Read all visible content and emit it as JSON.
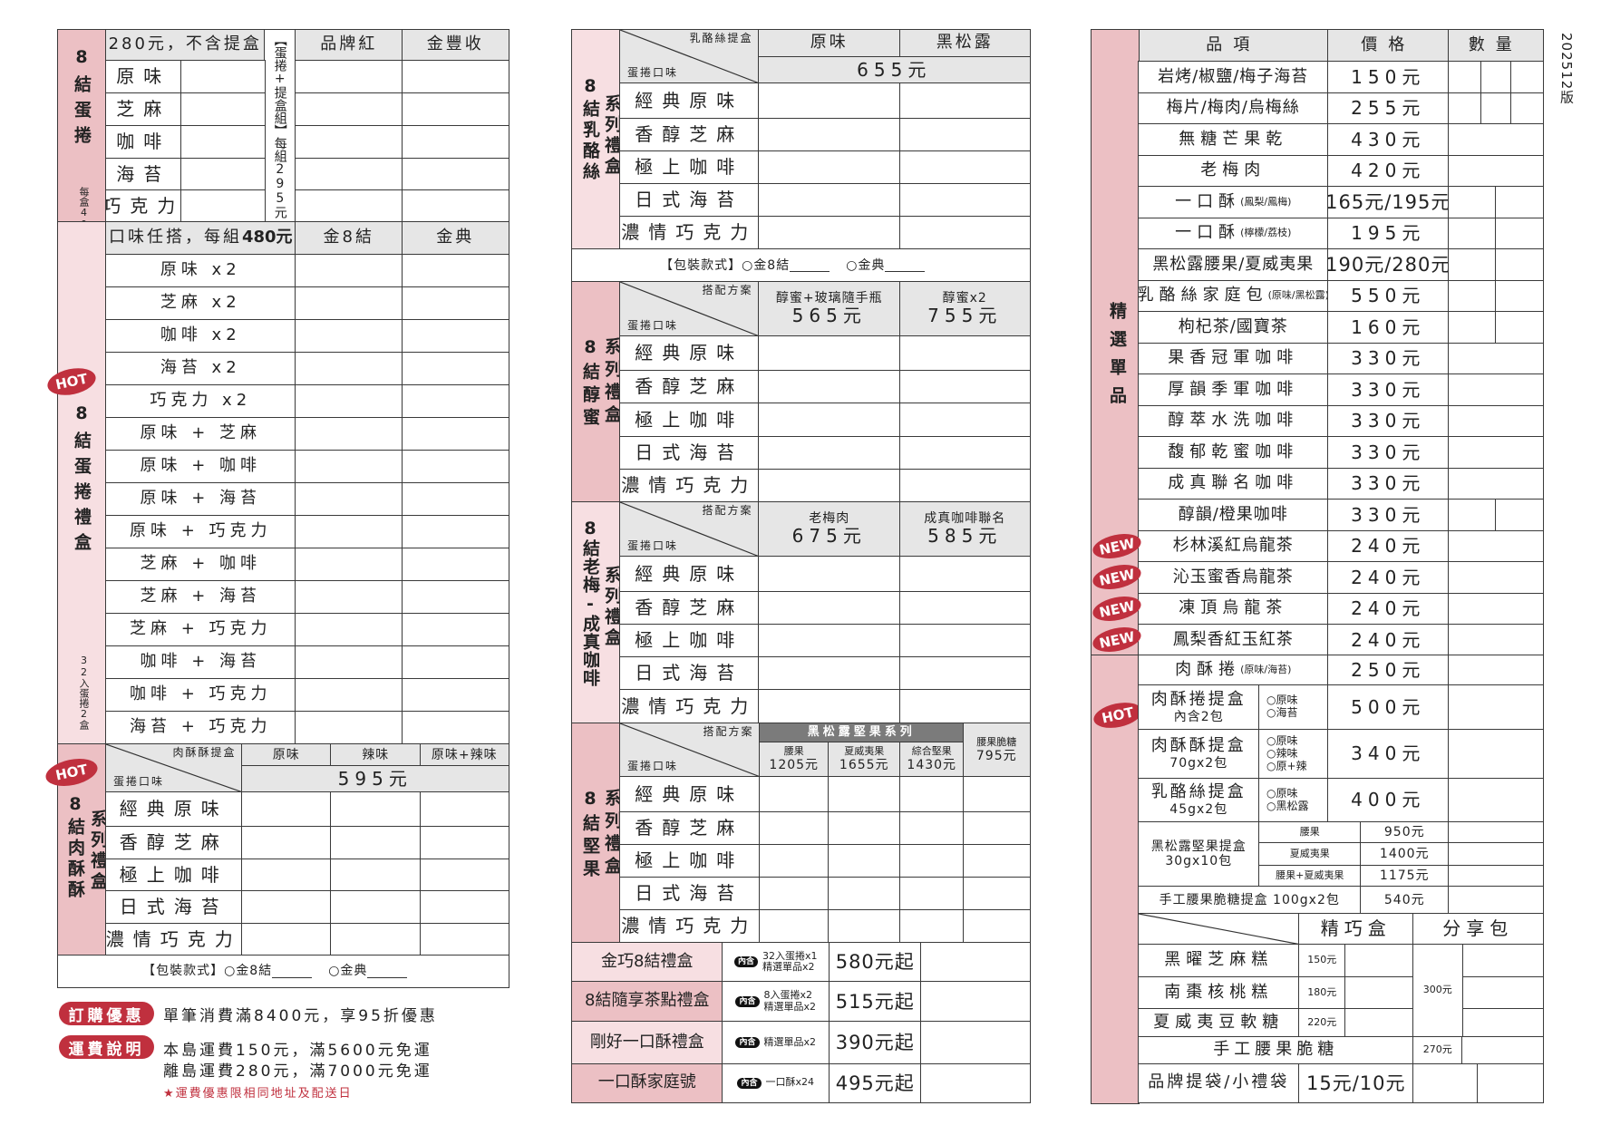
{
  "version": "202512版",
  "colors": {
    "pink": "#ecc0c4",
    "light_pink": "#f7dfe2",
    "header_gray": "#e6e6e6",
    "badge_red": "#c0303e"
  },
  "shared": {
    "flavors": [
      "經典原味",
      "香醇芝麻",
      "極上咖啡",
      "日式海苔",
      "濃情巧克力"
    ],
    "packaging": {
      "label": "【包裝款式】",
      "option1": "○金8結",
      "option2": "○金典"
    }
  },
  "left": {
    "eggroll": {
      "title": "8結蛋捲",
      "note": "每盒40入",
      "header": "280元，不含提盒",
      "flavors": [
        "原味",
        "芝麻",
        "咖啡",
        "海苔",
        "巧克力"
      ],
      "set_label": "【蛋捲+提盒組】",
      "set_price": "每組295元",
      "columns": [
        "品牌紅",
        "金豐收"
      ]
    },
    "giftbox": {
      "badge": "HOT",
      "title": "8結蛋捲禮盒",
      "note": "32入蛋捲2盒",
      "header_text": "口味任搭，每組",
      "header_price": "480元",
      "columns": [
        "金8結",
        "金典"
      ],
      "rows": [
        "原味 x2",
        "芝麻 x2",
        "咖啡 x2",
        "海苔 x2",
        "巧克力 x2",
        "原味 + 芝麻",
        "原味 + 咖啡",
        "原味 + 海苔",
        "原味 + 巧克力",
        "芝麻 + 咖啡",
        "芝麻 + 海苔",
        "芝麻 + 巧克力",
        "咖啡 + 海苔",
        "咖啡 + 巧克力",
        "海苔 + 巧克力"
      ]
    },
    "meat_box": {
      "badge": "HOT",
      "title": "8結肉酥酥",
      "subtitle": "系列禮盒",
      "corner_top": "肉酥酥提盒",
      "corner_bottom": "蛋捲口味",
      "columns": [
        "原味",
        "辣味",
        "原味+辣味"
      ],
      "price": "595元"
    },
    "promo": {
      "discount_badge": "訂購優惠",
      "discount_text": "單筆消費滿8400元，享95折優惠",
      "shipping_badge": "運費說明",
      "shipping_line1": "本島運費150元，滿5600元免運",
      "shipping_line2": "離島運費280元，滿7000元免運",
      "note": "★運費優惠限相同地址及配送日"
    }
  },
  "middle": {
    "cheese": {
      "title": "8結乳酪絲",
      "subtitle": "系列禮盒",
      "corner_top": "乳酪絲提盒",
      "corner_bottom": "蛋捲口味",
      "columns": [
        "原味",
        "黑松露"
      ],
      "price": "655元"
    },
    "honey": {
      "title": "8結醇蜜",
      "subtitle": "系列禮盒",
      "corner_top": "搭配方案",
      "corner_bottom": "蛋捲口味",
      "columns": [
        {
          "name": "醇蜜+玻璃隨手瓶",
          "price": "565元"
        },
        {
          "name": "醇蜜x2",
          "price": "755元"
        }
      ]
    },
    "plum": {
      "title": "8結老梅-成真咖啡",
      "subtitle": "系列禮盒",
      "corner_top": "搭配方案",
      "corner_bottom": "蛋捲口味",
      "columns": [
        {
          "name": "老梅肉",
          "price": "675元"
        },
        {
          "name": "成真咖啡聯名",
          "price": "585元"
        }
      ]
    },
    "nuts": {
      "title": "8結堅果",
      "subtitle": "系列禮盒",
      "corner_top": "搭配方案",
      "corner_bottom": "蛋捲口味",
      "series": "黑松露堅果系列",
      "columns": [
        {
          "name": "腰果",
          "price": "1205元"
        },
        {
          "name": "夏威夷果",
          "price": "1655元"
        },
        {
          "name": "綜合堅果",
          "price": "1430元"
        },
        {
          "name": "腰果脆糖",
          "price": "795元"
        }
      ]
    },
    "contents_badge": "內含",
    "gifts": [
      {
        "name": "金巧8結禮盒",
        "contents": [
          "32入蛋捲x1",
          "精選單品x2"
        ],
        "price": "580元起"
      },
      {
        "name": "8結隨享茶點禮盒",
        "contents": [
          "8入蛋捲x2",
          "精選單品x2"
        ],
        "price": "515元起"
      },
      {
        "name": "剛好一口酥禮盒",
        "contents": [
          "精選單品x2"
        ],
        "price": "390元起"
      },
      {
        "name": "一口酥家庭號",
        "contents": [
          "一口酥x24"
        ],
        "price": "495元起"
      }
    ]
  },
  "right": {
    "header": {
      "item": "品項",
      "price": "價格",
      "qty": "數量"
    },
    "section_label": "精選單品",
    "new_badge": "NEW",
    "hot_badge": "HOT",
    "items": [
      {
        "name": "岩烤/椒鹽/梅子海苔",
        "price": "150元"
      },
      {
        "name": "梅片/梅肉/烏梅絲",
        "price": "255元"
      },
      {
        "name": "無糖芒果乾",
        "price": "430元"
      },
      {
        "name": "老梅肉",
        "price": "420元"
      },
      {
        "name": "一口酥",
        "note": "(鳳梨/鳳梅)",
        "price": "165元/195元"
      },
      {
        "name": "一口酥",
        "note": "(檸檬/荔枝)",
        "price": "195元"
      },
      {
        "name": "黑松露腰果/夏威夷果",
        "price": "190元/280元"
      },
      {
        "name": "乳酪絲家庭包",
        "note": "(原味/黑松露)",
        "price": "550元"
      },
      {
        "name": "枸杞茶/國寶茶",
        "price": "160元"
      },
      {
        "name": "果香冠軍咖啡",
        "price": "330元"
      },
      {
        "name": "厚韻季軍咖啡",
        "price": "330元"
      },
      {
        "name": "醇萃水洗咖啡",
        "price": "330元"
      },
      {
        "name": "馥郁乾蜜咖啡",
        "price": "330元"
      },
      {
        "name": "成真聯名咖啡",
        "price": "330元"
      },
      {
        "name": "醇韻/橙果咖啡",
        "price": "330元"
      },
      {
        "name": "杉林溪紅烏龍茶",
        "price": "240元",
        "is_new": true
      },
      {
        "name": "沁玉蜜香烏龍茶",
        "price": "240元",
        "is_new": true
      },
      {
        "name": "凍頂烏龍茶",
        "price": "240元",
        "is_new": true
      },
      {
        "name": "鳳梨香紅玉紅茶",
        "price": "240元",
        "is_new": true
      }
    ],
    "meat_roll": {
      "name": "肉酥捲",
      "note": "(原味/海苔)",
      "price": "250元"
    },
    "boxes": [
      {
        "name": "肉酥捲提盒",
        "sub": "內含2包",
        "options": [
          "○原味",
          "○海苔"
        ],
        "price": "500元"
      },
      {
        "name": "肉酥酥提盒",
        "sub": "70gx2包",
        "options": [
          "○原味",
          "○辣味",
          "○原+辣"
        ],
        "price": "340元"
      },
      {
        "name": "乳酪絲提盒",
        "sub": "45gx2包",
        "options": [
          "○原味",
          "○黑松露"
        ],
        "price": "400元"
      }
    ],
    "nut_box": {
      "name": "黑松露堅果提盒",
      "sub": "30gx10包",
      "options": [
        {
          "name": "腰果",
          "price": "950元"
        },
        {
          "name": "夏威夷果",
          "price": "1400元"
        },
        {
          "name": "腰果+夏威夷果",
          "price": "1175元"
        }
      ]
    },
    "brittle_box": {
      "name": "手工腰果脆糖提盒 100gx2包",
      "price": "540元"
    },
    "snacks": {
      "columns": [
        "精巧盒",
        "分享包"
      ],
      "rows": [
        {
          "name": "黑曜芝麻糕",
          "price": "150元"
        },
        {
          "name": "南棗核桃糕",
          "price": "180元"
        },
        {
          "name": "夏威夷豆軟糖",
          "price": "220元"
        }
      ],
      "share_price": "300元",
      "brittle": {
        "name": "手工腰果脆糖",
        "price": "270元"
      },
      "bags": {
        "name": "品牌提袋/小禮袋",
        "price": "15元/10元"
      }
    }
  }
}
